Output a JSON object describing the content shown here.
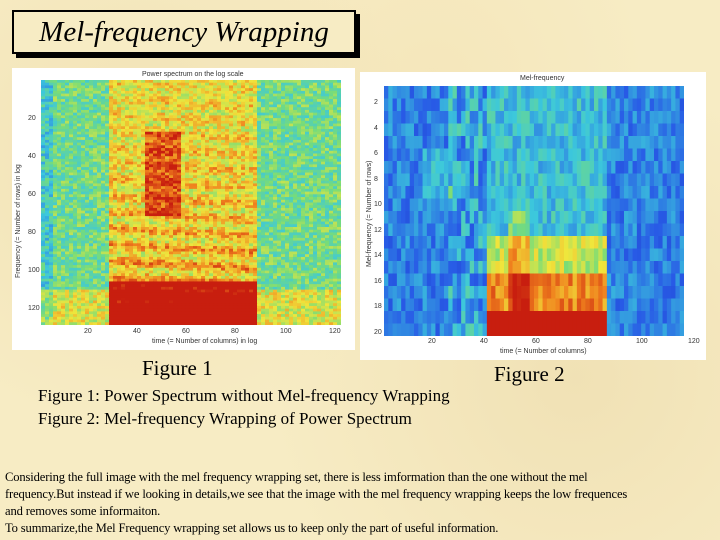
{
  "title": "Mel-frequency Wrapping",
  "figure1": {
    "plot_title": "Power spectrum on the log scale",
    "ylabel": "Frequency (= Number of rows) in log",
    "xlabel": "time (= Number of columns) in log",
    "yticks": [
      "20",
      "40",
      "60",
      "80",
      "100",
      "120"
    ],
    "xticks": [
      "20",
      "40",
      "60",
      "80",
      "100",
      "120"
    ],
    "label": "Figure 1"
  },
  "figure2": {
    "plot_title": "Mel-frequency",
    "ylabel": "Mel-frequency (= Number of rows)",
    "xlabel": "time (= Number of columns)",
    "yticks": [
      "2",
      "4",
      "6",
      "8",
      "10",
      "12",
      "14",
      "16",
      "18",
      "20"
    ],
    "xticks": [
      "20",
      "40",
      "60",
      "80",
      "100",
      "120"
    ],
    "label": "Figure 2"
  },
  "captions": [
    "Figure 1: Power Spectrum without Mel-frequency Wrapping",
    "Figure 2: Mel-frequency Wrapping of Power Spectrum"
  ],
  "body_lines": [
    "Considering the full image with the mel frequency wrapping set, there is less imformation than the one without the mel",
    "frequency.But instead if we looking in details,we see that the image with the mel frequency wrapping keeps the low frequences",
    "and removes some informaiton.",
    "To summarize,the Mel Frequency wrapping set allows us to keep only the part of useful information."
  ],
  "colors": {
    "background": "#f7ecc4",
    "spectrum_low": "#1f4fd8",
    "spectrum_mid": "#3ad4c8",
    "spectrum_high": "#f3e33a",
    "spectrum_peak": "#d42a16"
  }
}
